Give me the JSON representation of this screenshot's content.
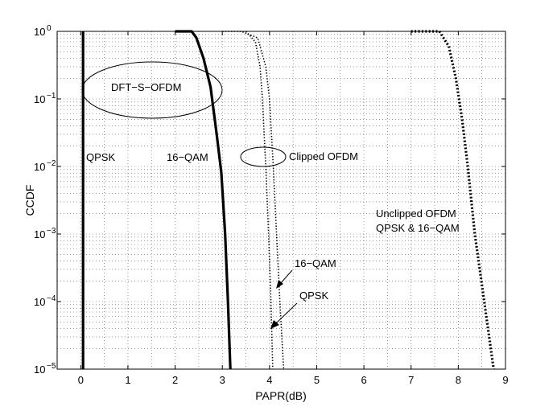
{
  "chart_data": {
    "type": "line",
    "title": "",
    "xlabel": "PAPR(dB)",
    "ylabel": "CCDF",
    "xlim": [
      -0.5,
      9
    ],
    "ylim": [
      1e-05,
      1
    ],
    "yscale": "log",
    "grid": true,
    "x_ticks": [
      "0",
      "1",
      "2",
      "3",
      "4",
      "5",
      "6",
      "7",
      "8",
      "9"
    ],
    "y_ticks": [
      {
        "base": "10",
        "exp": "0"
      },
      {
        "base": "10",
        "exp": "−1"
      },
      {
        "base": "10",
        "exp": "−2"
      },
      {
        "base": "10",
        "exp": "−3"
      },
      {
        "base": "10",
        "exp": "−4"
      },
      {
        "base": "10",
        "exp": "−5"
      }
    ],
    "series": [
      {
        "style": "solid-thick",
        "points": [
          [
            0.05,
            1
          ],
          [
            0.05,
            1e-05
          ]
        ]
      },
      {
        "style": "solid-thick",
        "points": [
          [
            2.0,
            1
          ],
          [
            2.35,
            1
          ],
          [
            2.45,
            0.8
          ],
          [
            2.6,
            0.4
          ],
          [
            2.75,
            0.15
          ],
          [
            2.88,
            0.03
          ],
          [
            2.98,
            0.008
          ],
          [
            3.06,
            0.001
          ],
          [
            3.12,
            0.0001
          ],
          [
            3.17,
            1e-05
          ]
        ]
      },
      {
        "style": "dotted-thin",
        "points": [
          [
            3.5,
            1
          ],
          [
            3.7,
            0.7
          ],
          [
            3.8,
            0.3
          ],
          [
            3.85,
            0.1
          ],
          [
            3.92,
            0.01
          ],
          [
            3.98,
            0.001
          ],
          [
            4.03,
            0.0001
          ],
          [
            4.07,
            1e-05
          ]
        ]
      },
      {
        "style": "dotted-thin",
        "points": [
          [
            3.0,
            1
          ],
          [
            3.4,
            1
          ],
          [
            3.75,
            0.8
          ],
          [
            3.92,
            0.3
          ],
          [
            4.0,
            0.1
          ],
          [
            4.08,
            0.01
          ],
          [
            4.15,
            0.001
          ],
          [
            4.22,
            0.0001
          ],
          [
            4.3,
            1e-05
          ]
        ]
      },
      {
        "style": "dotted-thick",
        "points": [
          [
            7.0,
            1
          ],
          [
            7.6,
            1
          ],
          [
            7.8,
            0.6
          ],
          [
            7.95,
            0.2
          ],
          [
            8.08,
            0.05
          ],
          [
            8.2,
            0.01
          ],
          [
            8.35,
            0.001
          ],
          [
            8.55,
            0.0001
          ],
          [
            8.75,
            1e-05
          ]
        ]
      }
    ],
    "annotations": {
      "dftsofdm": "DFT−S−OFDM",
      "qpsk_left": "QPSK",
      "qam_left": "16−QAM",
      "clipped": "Clipped OFDM",
      "unclipped_1": "Unclipped OFDM",
      "unclipped_2": "QPSK & 16−QAM",
      "qam_arrow": "16−QAM",
      "qpsk_arrow": "QPSK"
    }
  }
}
